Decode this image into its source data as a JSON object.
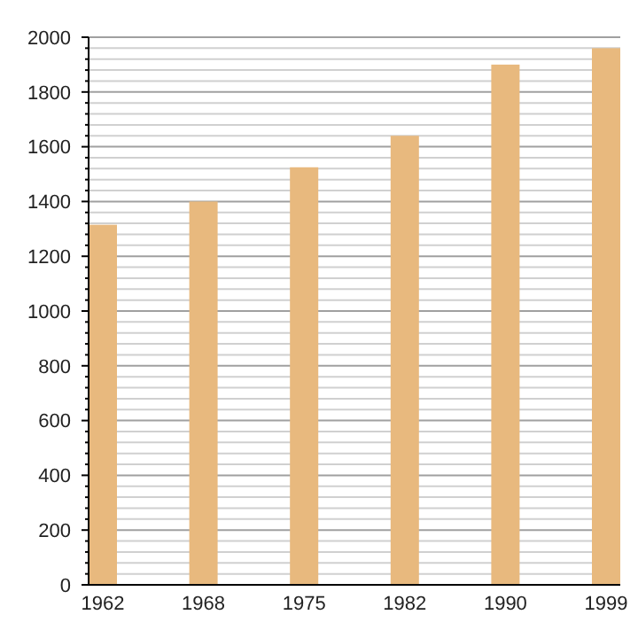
{
  "chart_data": {
    "type": "bar",
    "categories": [
      "1962",
      "1968",
      "1975",
      "1982",
      "1990",
      "1999"
    ],
    "values": [
      1315,
      1400,
      1525,
      1640,
      1900,
      1960
    ],
    "color": "#e8b97e",
    "ylim": [
      0,
      2000
    ],
    "yticks": [
      0,
      {
        "value": 40,
        "label": null
      },
      {
        "value": 80,
        "label": null
      },
      {
        "value": 120,
        "label": null
      },
      {
        "value": 160,
        "label": null
      },
      200,
      {
        "value": 240,
        "label": null
      },
      {
        "value": 280,
        "label": null
      },
      {
        "value": 320,
        "label": null
      },
      {
        "value": 360,
        "label": null
      },
      400,
      {
        "value": 440,
        "label": null
      },
      {
        "value": 480,
        "label": null
      },
      {
        "value": 520,
        "label": null
      },
      {
        "value": 560,
        "label": null
      },
      600,
      {
        "value": 640,
        "label": null
      },
      {
        "value": 680,
        "label": null
      },
      {
        "value": 720,
        "label": null
      },
      {
        "value": 760,
        "label": null
      },
      800,
      {
        "value": 840,
        "label": null
      },
      {
        "value": 880,
        "label": null
      },
      {
        "value": 920,
        "label": null
      },
      {
        "value": 960,
        "label": null
      },
      1000,
      {
        "value": 1040,
        "label": null
      },
      {
        "value": 1080,
        "label": null
      },
      {
        "value": 1120,
        "label": null
      },
      {
        "value": 1160,
        "label": null
      },
      1200,
      {
        "value": 1240,
        "label": null
      },
      {
        "value": 1280,
        "label": null
      },
      {
        "value": 1320,
        "label": null
      },
      {
        "value": 1360,
        "label": null
      },
      1400,
      {
        "value": 1440,
        "label": null
      },
      {
        "value": 1480,
        "label": null
      },
      {
        "value": 1520,
        "label": null
      },
      {
        "value": 1560,
        "label": null
      },
      1600,
      {
        "value": 1640,
        "label": null
      },
      {
        "value": 1680,
        "label": null
      },
      {
        "value": 1720,
        "label": null
      },
      {
        "value": 1760,
        "label": null
      },
      1800,
      {
        "value": 1840,
        "label": null
      },
      {
        "value": 1880,
        "label": null
      },
      {
        "value": 1920,
        "label": null
      },
      {
        "value": 1960,
        "label": null
      },
      2000
    ],
    "grid": true
  }
}
